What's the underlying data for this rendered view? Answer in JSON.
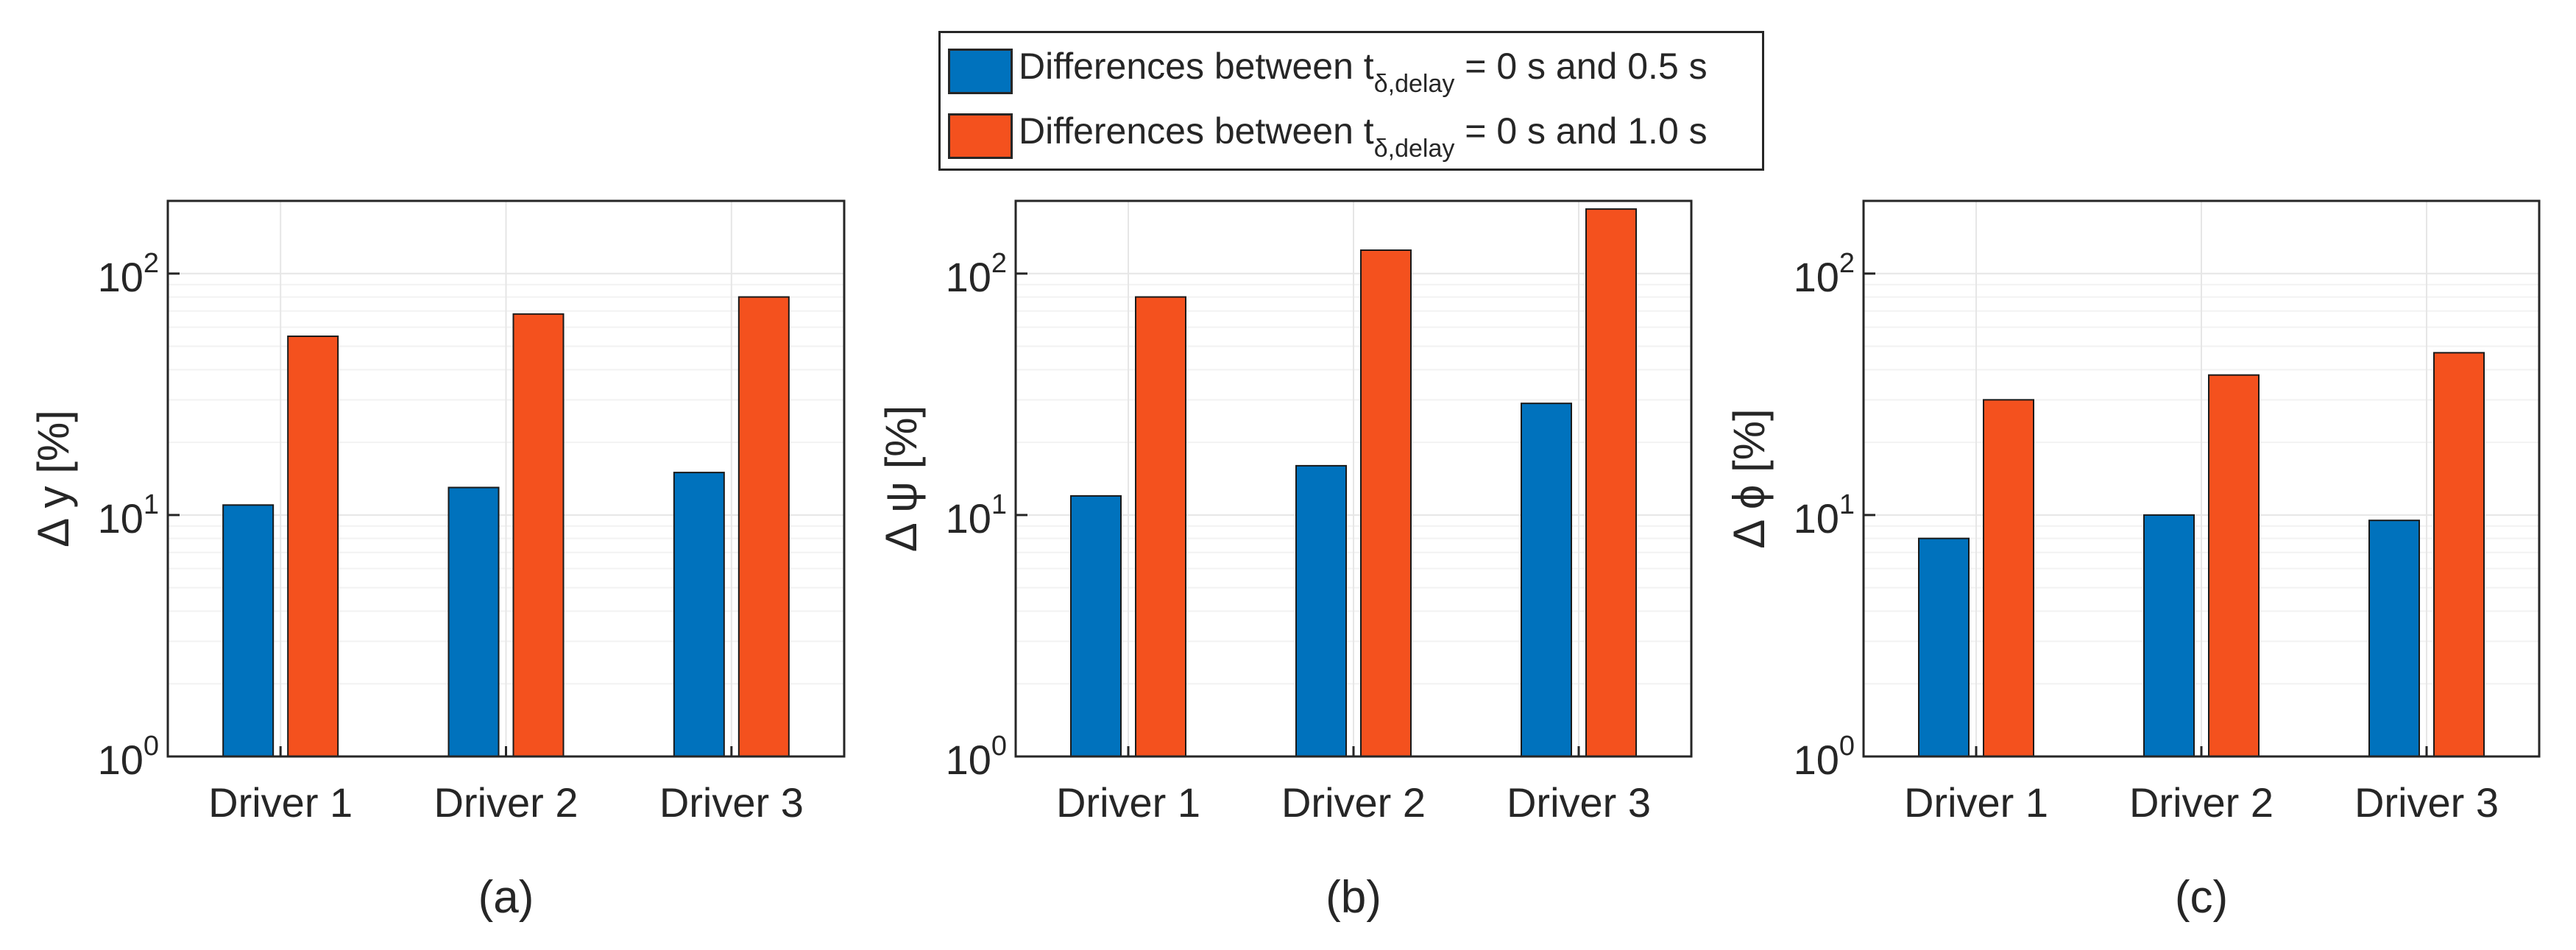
{
  "colors": {
    "series1": "#0072BD",
    "series2": "#F4511E",
    "axis": "#262626",
    "grid": "#E6E6E6"
  },
  "legend": {
    "entries": [
      {
        "prefix": "Differences between t",
        "sub": "δ,delay",
        "suffix": " = 0 s and 0.5 s"
      },
      {
        "prefix": "Differences between t",
        "sub": "δ,delay",
        "suffix": " = 0 s and 1.0 s"
      }
    ]
  },
  "chart_data": [
    {
      "type": "bar",
      "panel_label": "(a)",
      "ylabel": "Δ y [%]",
      "yscale": "log",
      "ylim": [
        1,
        200
      ],
      "yticks": [
        {
          "base": "10",
          "exp": "0"
        },
        {
          "base": "10",
          "exp": "1"
        },
        {
          "base": "10",
          "exp": "2"
        }
      ],
      "categories": [
        "Driver 1",
        "Driver 2",
        "Driver 3"
      ],
      "series": [
        {
          "name": "Differences between t δ,delay = 0 s and 0.5 s",
          "values": [
            11,
            13,
            15
          ]
        },
        {
          "name": "Differences between t δ,delay = 0 s and 1.0 s",
          "values": [
            55,
            68,
            80
          ]
        }
      ]
    },
    {
      "type": "bar",
      "panel_label": "(b)",
      "ylabel": "Δ ψ [%]",
      "yscale": "log",
      "ylim": [
        1,
        200
      ],
      "yticks": [
        {
          "base": "10",
          "exp": "0"
        },
        {
          "base": "10",
          "exp": "1"
        },
        {
          "base": "10",
          "exp": "2"
        }
      ],
      "categories": [
        "Driver 1",
        "Driver 2",
        "Driver 3"
      ],
      "series": [
        {
          "name": "Differences between t δ,delay = 0 s and 0.5 s",
          "values": [
            12,
            16,
            29
          ]
        },
        {
          "name": "Differences between t δ,delay = 0 s and 1.0 s",
          "values": [
            80,
            125,
            185
          ]
        }
      ]
    },
    {
      "type": "bar",
      "panel_label": "(c)",
      "ylabel": "Δ ϕ [%]",
      "yscale": "log",
      "ylim": [
        1,
        200
      ],
      "yticks": [
        {
          "base": "10",
          "exp": "0"
        },
        {
          "base": "10",
          "exp": "1"
        },
        {
          "base": "10",
          "exp": "2"
        }
      ],
      "categories": [
        "Driver 1",
        "Driver 2",
        "Driver 3"
      ],
      "series": [
        {
          "name": "Differences between t δ,delay = 0 s and 0.5 s",
          "values": [
            8,
            10,
            9.5
          ]
        },
        {
          "name": "Differences between t δ,delay = 0 s and 1.0 s",
          "values": [
            30,
            38,
            47
          ]
        }
      ]
    }
  ]
}
